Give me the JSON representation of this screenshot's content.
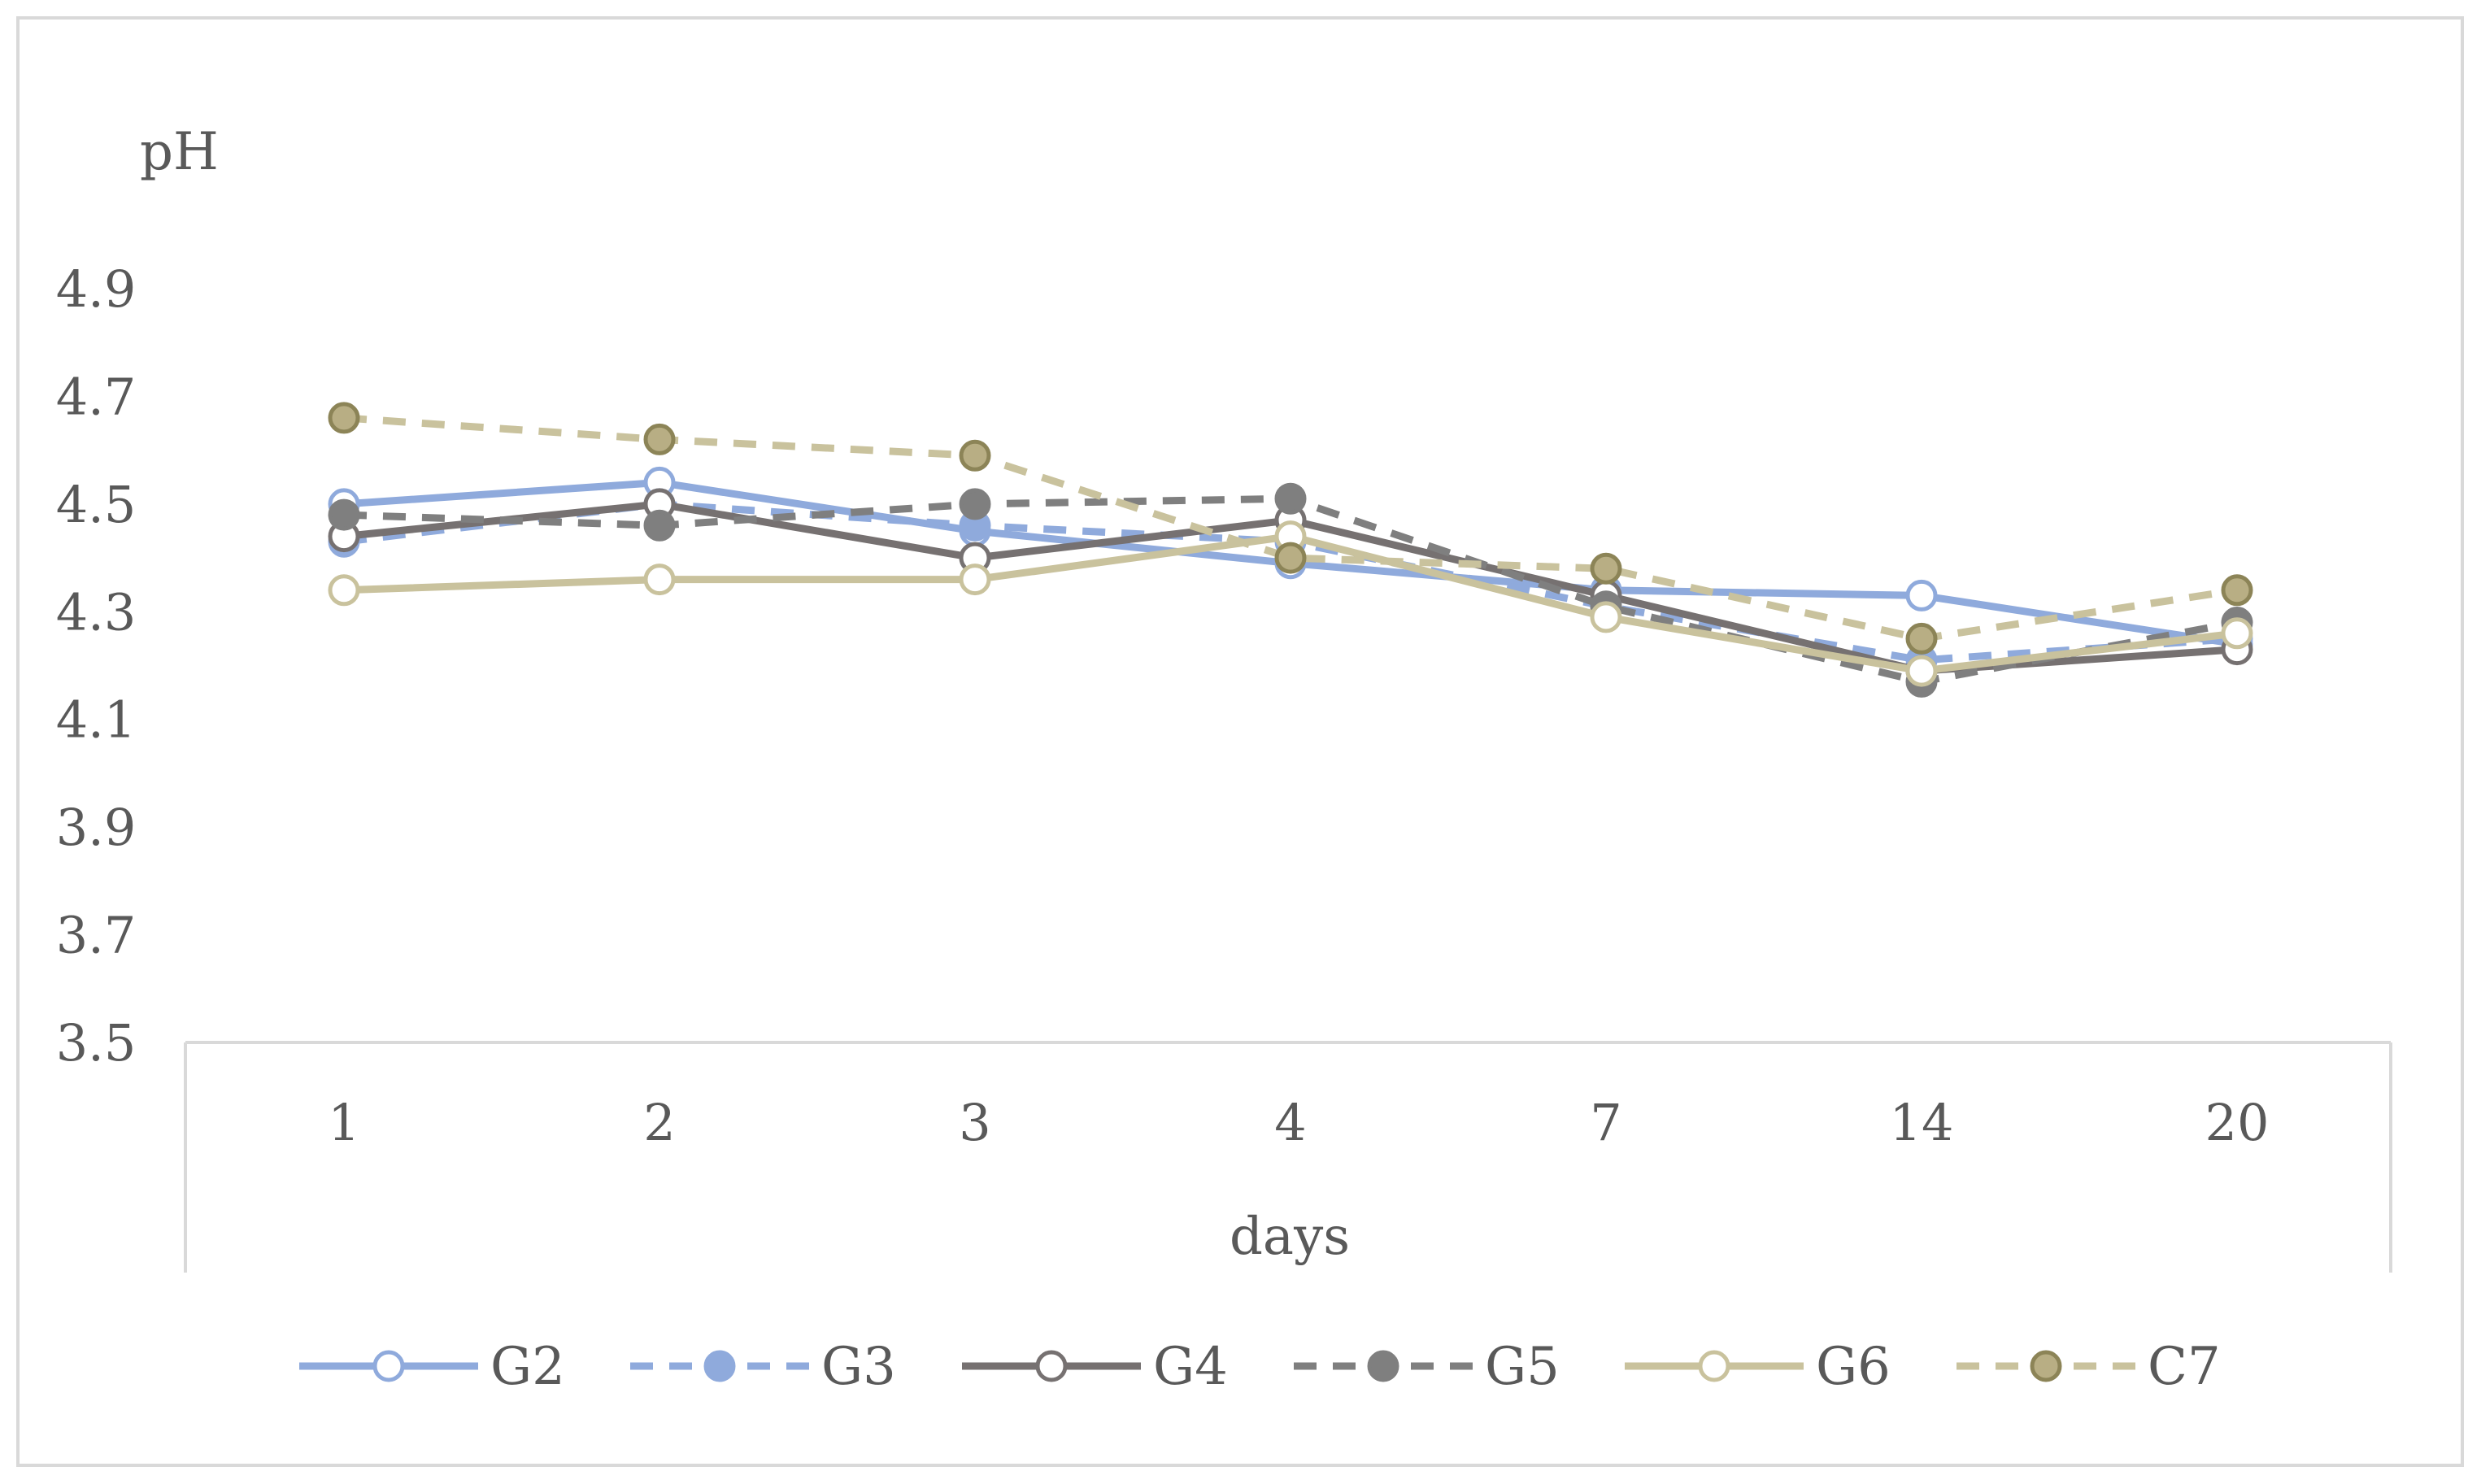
{
  "chart_data": {
    "type": "line",
    "title": "",
    "xlabel": "days",
    "ylabel": "pH",
    "categories": [
      "1",
      "2",
      "3",
      "4",
      "7",
      "14",
      "20"
    ],
    "ylim": [
      3.5,
      4.9
    ],
    "yticks": [
      "3.5",
      "3.7",
      "3.9",
      "4.1",
      "4.3",
      "4.5",
      "4.7",
      "4.9"
    ],
    "legend_position": "bottom",
    "series": [
      {
        "name": "G2",
        "values": [
          4.5,
          4.54,
          4.45,
          4.39,
          4.34,
          4.33,
          4.24
        ],
        "color": "#8faadc",
        "dash": false,
        "marker": "open"
      },
      {
        "name": "G3",
        "values": [
          4.43,
          4.5,
          4.46,
          4.43,
          4.31,
          4.21,
          4.25
        ],
        "color": "#8faadc",
        "dash": true,
        "marker": "filled"
      },
      {
        "name": "G4",
        "values": [
          4.44,
          4.5,
          4.4,
          4.47,
          4.33,
          4.19,
          4.23
        ],
        "color": "#767171",
        "dash": false,
        "marker": "open"
      },
      {
        "name": "G5",
        "values": [
          4.48,
          4.46,
          4.5,
          4.51,
          4.31,
          4.17,
          4.28
        ],
        "color": "#7f7f7f",
        "dash": true,
        "marker": "filled"
      },
      {
        "name": "G6",
        "values": [
          4.34,
          4.36,
          4.36,
          4.44,
          4.29,
          4.19,
          4.26
        ],
        "color": "#c9c29d",
        "dash": false,
        "marker": "open"
      },
      {
        "name": "C7",
        "values": [
          4.66,
          4.62,
          4.59,
          4.4,
          4.38,
          4.25,
          4.34
        ],
        "color": "#c9c29d",
        "dash": true,
        "marker": "filled",
        "marker_fill": "#b8ae84",
        "marker_stroke": "#8c8457"
      }
    ]
  }
}
